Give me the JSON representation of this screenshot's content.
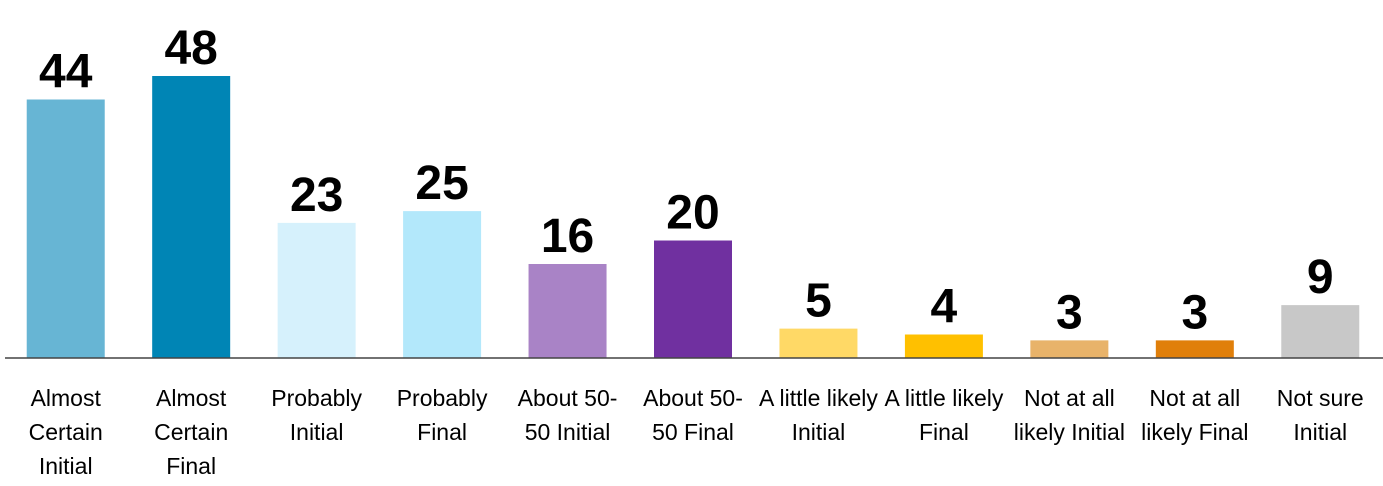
{
  "chart_data": {
    "type": "bar",
    "categories": [
      "Almost Certain Initial",
      "Almost Certain Final",
      "Probably Initial",
      "Probably Final",
      "About 50-50 Initial",
      "About 50-50 Final",
      "A little likely Initial",
      "A little likely Final",
      "Not at all likely Initial",
      "Not at all likely Final",
      "Not sure Initial"
    ],
    "values": [
      44,
      48,
      23,
      25,
      16,
      20,
      5,
      4,
      3,
      3,
      9
    ],
    "colors": [
      "#67b5d4",
      "#0085b5",
      "#d6f1fc",
      "#b3e8fb",
      "#a983c6",
      "#7030a0",
      "#ffd966",
      "#ffc000",
      "#e8b36a",
      "#e07f0a",
      "#c8c8c8"
    ],
    "ylim": [
      0,
      48
    ]
  }
}
